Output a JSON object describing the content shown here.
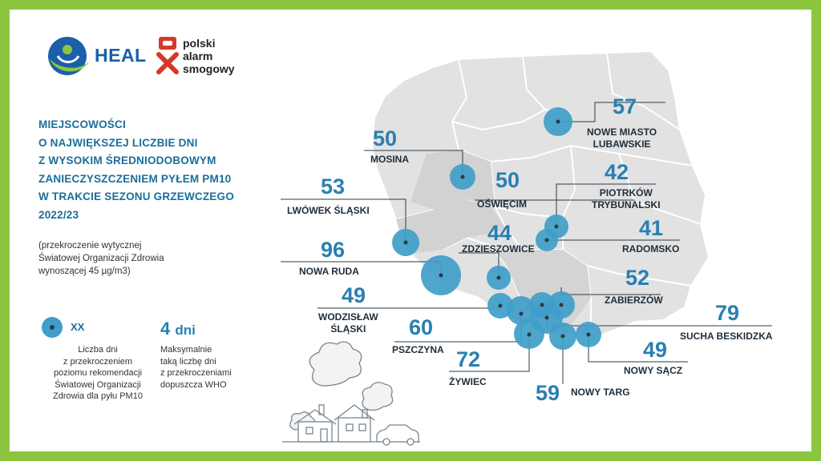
{
  "logos": {
    "heal": "HEAL",
    "psa": "polski\nalarm\nsmogowy"
  },
  "title": "MIEJSCOWOŚCI\nO NAJWIĘKSZEJ LICZBIE DNI\nZ WYSOKIM ŚREDNIODOBOWYM\nZANIECZYSZCZENIEM PYŁEM PM10\nW TRAKCIE SEZONU GRZEWCZEGO\n2022/23",
  "note": "(przekroczenie wytycznej\nŚwiatowej Organizacji Zdrowia\nwynoszącej 45 µg/m3)",
  "legend": {
    "xx": "XX",
    "xx_desc": "Liczba dni\nz przekroczeniem\npoziomu rekomendacji\nŚwiatowej Organizacji\nZdrowia dla pyłu PM10",
    "days_value": "4",
    "days_unit": "dni",
    "days_desc": "Maksymalnie\ntaką liczbę dni\nz przekroczeniami\ndopuszcza WHO"
  },
  "colors": {
    "frame": "#8cc63f",
    "circle": "#3f9ec9",
    "number": "#2a7fb0",
    "title": "#1a6e9a",
    "map_fill": "#e2e2e2",
    "map_fill_dark": "#cfcfcf"
  },
  "towns": [
    {
      "id": "nowe-miasto-lubawskie",
      "value": "57",
      "name": "NOWE MIASTO\nLUBAWSKIE"
    },
    {
      "id": "mosina",
      "value": "50",
      "name": "MOSINA"
    },
    {
      "id": "oswiecim",
      "value": "50",
      "name": "OŚWIĘCIM"
    },
    {
      "id": "piotrkow-trybunalski",
      "value": "42",
      "name": "PIOTRKÓW\nTRYBUNALSKI"
    },
    {
      "id": "lwowek-slaski",
      "value": "53",
      "name": "LWÓWEK ŚLĄSKI"
    },
    {
      "id": "radomsko",
      "value": "41",
      "name": "RADOMSKO"
    },
    {
      "id": "zdzieszowice",
      "value": "44",
      "name": "ZDZIESZOWICE"
    },
    {
      "id": "nowa-ruda",
      "value": "96",
      "name": "NOWA RUDA"
    },
    {
      "id": "zabierzow",
      "value": "52",
      "name": "ZABIERZÓW"
    },
    {
      "id": "wodzislaw-slaski",
      "value": "49",
      "name": "WODZISŁAW\nŚLĄSKI"
    },
    {
      "id": "sucha-beskidzka",
      "value": "79",
      "name": "SUCHA BESKIDZKA"
    },
    {
      "id": "pszczyna",
      "value": "60",
      "name": "PSZCZYNA"
    },
    {
      "id": "nowy-sacz",
      "value": "49",
      "name": "NOWY SĄCZ"
    },
    {
      "id": "zywiec",
      "value": "72",
      "name": "ŻYWIEC"
    },
    {
      "id": "nowy-targ",
      "value": "59",
      "name": "NOWY TARG"
    }
  ]
}
